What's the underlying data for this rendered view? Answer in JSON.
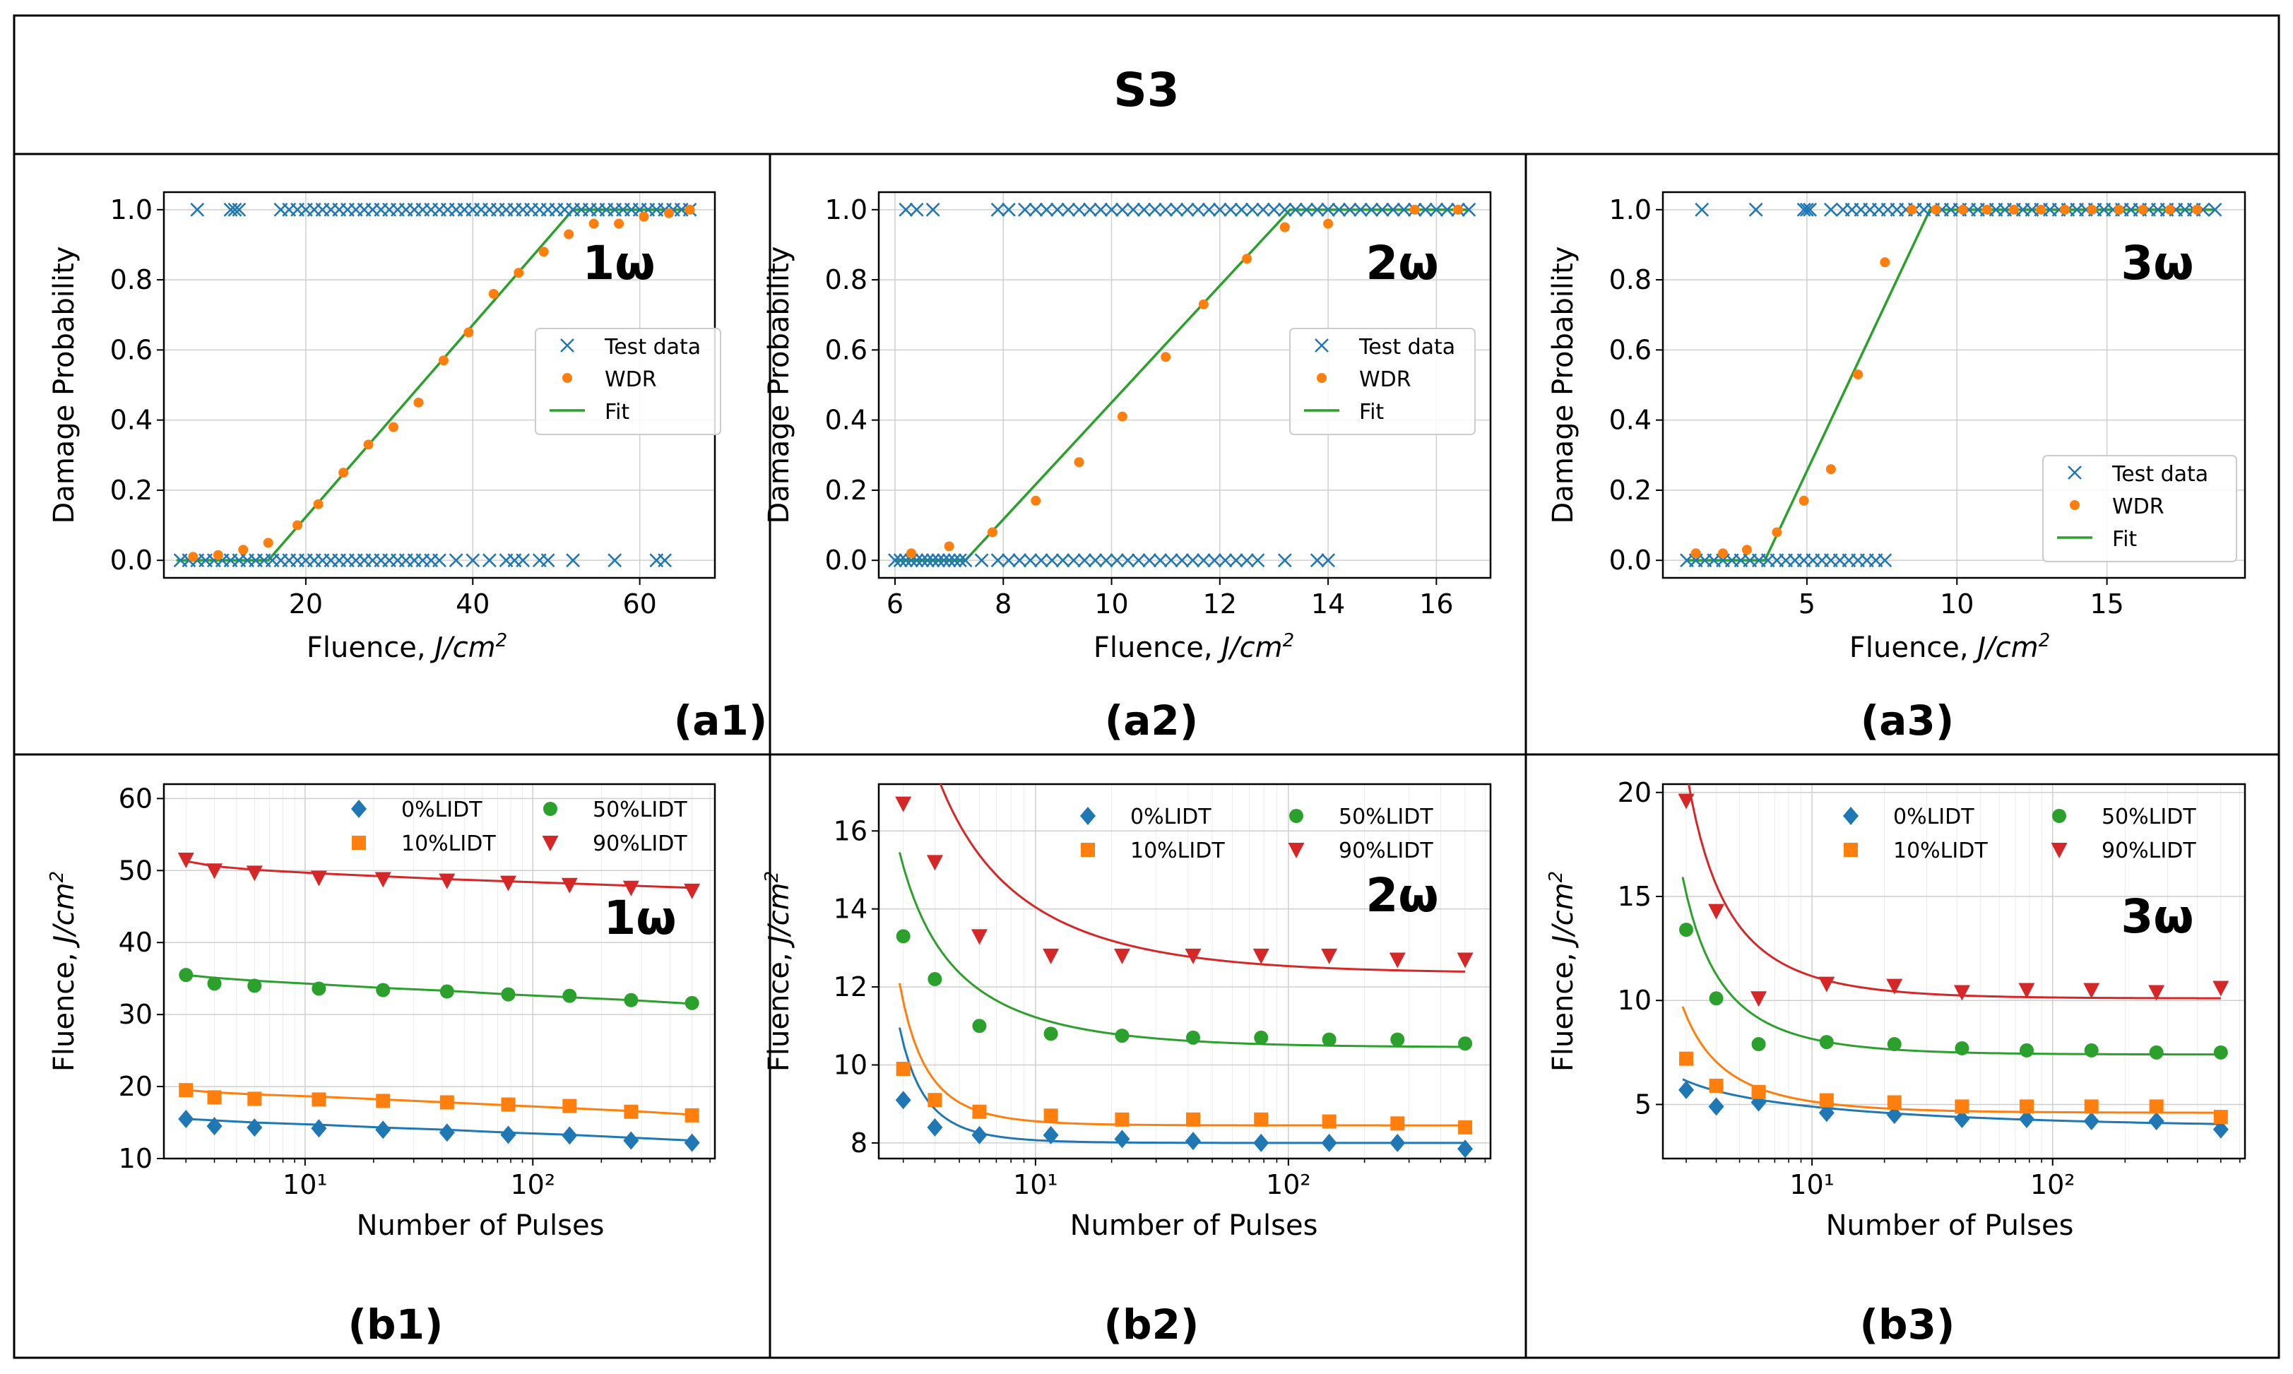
{
  "header": {
    "title": "S3"
  },
  "colors": {
    "blue": "#1f77b4",
    "orange": "#ff7f0e",
    "green": "#2ca02c",
    "red": "#d62728",
    "fitGreen": "#2ca02c"
  },
  "chart_data": [
    {
      "id": "a1",
      "panel_label": "(a1)",
      "type": "scatter",
      "title": "",
      "annotation": "1ω",
      "xlabel": "Fluence, J/cm²",
      "ylabel": "Damage Probability",
      "xlim": [
        3,
        69
      ],
      "ylim": [
        -0.05,
        1.05
      ],
      "xticks": [
        20,
        40,
        60
      ],
      "yticks": [
        0.0,
        0.2,
        0.4,
        0.6,
        0.8,
        1.0
      ],
      "grid": true,
      "legend_position": "center-right",
      "legend": [
        "Test data",
        "WDR",
        "Fit"
      ],
      "test_data_y1_x": [
        7,
        11,
        11.5,
        12,
        17,
        18,
        19,
        20,
        21,
        22,
        23,
        24,
        25,
        26,
        27,
        28,
        29,
        30,
        31,
        32,
        33,
        34,
        35,
        36,
        37,
        38,
        39,
        40,
        41,
        42,
        43,
        44,
        45,
        46,
        47,
        48,
        49,
        50,
        51,
        52,
        53,
        54,
        55,
        56,
        57,
        58,
        59,
        60,
        61,
        62,
        63,
        64,
        65,
        66
      ],
      "test_data_y0_x": [
        5,
        6,
        7,
        8,
        9,
        10,
        11,
        12,
        13,
        14,
        15,
        16,
        17,
        18,
        19,
        20,
        21,
        22,
        23,
        24,
        25,
        26,
        27,
        28,
        29,
        30,
        31,
        32,
        33,
        34,
        35,
        36,
        38,
        40,
        42,
        44,
        45,
        46,
        48,
        49,
        52,
        57,
        62,
        63
      ],
      "wdr_x": [
        6.5,
        9.5,
        12.5,
        15.5,
        19,
        21.5,
        24.5,
        27.5,
        30.5,
        33.5,
        36.5,
        39.5,
        42.5,
        45.5,
        48.5,
        51.5,
        54.5,
        57.5,
        60.5,
        63.5,
        66
      ],
      "wdr_y": [
        0.01,
        0.015,
        0.03,
        0.05,
        0.1,
        0.16,
        0.25,
        0.33,
        0.38,
        0.45,
        0.57,
        0.65,
        0.76,
        0.82,
        0.88,
        0.93,
        0.96,
        0.96,
        0.98,
        0.99,
        1.0
      ],
      "fit_x": [
        4.5,
        15.5,
        52,
        66.5
      ],
      "fit_y": [
        0,
        0,
        1,
        1
      ]
    },
    {
      "id": "a2",
      "panel_label": "(a2)",
      "type": "scatter",
      "title": "",
      "annotation": "2ω",
      "xlabel": "Fluence, J/cm²",
      "ylabel": "Damage Probability",
      "xlim": [
        5.7,
        17
      ],
      "ylim": [
        -0.05,
        1.05
      ],
      "xticks": [
        6,
        8,
        10,
        12,
        14,
        16
      ],
      "yticks": [
        0.0,
        0.2,
        0.4,
        0.6,
        0.8,
        1.0
      ],
      "grid": true,
      "legend_position": "center-right",
      "legend": [
        "Test data",
        "WDR",
        "Fit"
      ],
      "test_data_y1_x": [
        6.2,
        6.4,
        6.7,
        7.9,
        8.1,
        8.4,
        8.6,
        8.8,
        9.0,
        9.2,
        9.4,
        9.6,
        9.8,
        10.0,
        10.2,
        10.4,
        10.6,
        10.8,
        11.0,
        11.2,
        11.4,
        11.6,
        11.8,
        12.0,
        12.2,
        12.4,
        12.6,
        12.8,
        13.0,
        13.2,
        13.4,
        13.6,
        13.8,
        14.0,
        14.2,
        14.4,
        14.6,
        14.8,
        15.0,
        15.2,
        15.4,
        15.6,
        15.8,
        16.0,
        16.2,
        16.4,
        16.6
      ],
      "test_data_y0_x": [
        6.0,
        6.1,
        6.2,
        6.3,
        6.4,
        6.5,
        6.6,
        6.7,
        6.8,
        6.9,
        7.0,
        7.1,
        7.2,
        7.3,
        7.6,
        7.9,
        8.1,
        8.3,
        8.5,
        8.7,
        8.9,
        9.1,
        9.3,
        9.5,
        9.7,
        9.9,
        10.1,
        10.3,
        10.5,
        10.7,
        10.9,
        11.1,
        11.3,
        11.5,
        11.7,
        11.9,
        12.1,
        12.3,
        12.5,
        12.7,
        13.2,
        13.8,
        14.0
      ],
      "wdr_x": [
        6.3,
        7.0,
        7.8,
        8.6,
        9.4,
        10.2,
        11.0,
        11.7,
        12.5,
        13.2,
        14.0,
        15.6,
        16.4
      ],
      "wdr_y": [
        0.02,
        0.04,
        0.08,
        0.17,
        0.28,
        0.41,
        0.58,
        0.73,
        0.86,
        0.95,
        0.96,
        1.0,
        1.0
      ],
      "fit_x": [
        6.0,
        7.3,
        13.3,
        16.6
      ],
      "fit_y": [
        0,
        0,
        1,
        1
      ]
    },
    {
      "id": "a3",
      "panel_label": "(a3)",
      "type": "scatter",
      "title": "",
      "annotation": "3ω",
      "xlabel": "Fluence, J/cm²",
      "ylabel": "Damage Probability",
      "xlim": [
        0.2,
        19.6
      ],
      "ylim": [
        -0.05,
        1.05
      ],
      "xticks": [
        5,
        10,
        15
      ],
      "yticks": [
        0.0,
        0.2,
        0.4,
        0.6,
        0.8,
        1.0
      ],
      "grid": true,
      "legend_position": "lower-right",
      "legend": [
        "Test data",
        "WDR",
        "Fit"
      ],
      "test_data_y1_x": [
        1.5,
        3.3,
        4.9,
        5.0,
        5.1,
        5.8,
        6.2,
        6.5,
        6.8,
        7.1,
        7.4,
        7.7,
        8.0,
        8.3,
        8.6,
        8.9,
        9.2,
        9.5,
        9.8,
        10.1,
        10.4,
        10.7,
        11.0,
        11.3,
        11.6,
        11.9,
        12.2,
        12.5,
        12.8,
        13.1,
        13.4,
        13.7,
        14.0,
        14.3,
        14.6,
        14.9,
        15.2,
        15.5,
        15.8,
        16.1,
        16.4,
        16.7,
        17.0,
        17.3,
        17.6,
        17.9,
        18.2,
        18.6
      ],
      "test_data_y0_x": [
        1.0,
        1.3,
        1.6,
        1.9,
        2.2,
        2.5,
        2.8,
        3.1,
        3.4,
        3.7,
        4.0,
        4.3,
        4.6,
        4.9,
        5.2,
        5.5,
        5.8,
        6.1,
        6.4,
        6.7,
        7.0,
        7.3,
        7.6
      ],
      "wdr_x": [
        1.3,
        2.2,
        3.0,
        4.0,
        4.9,
        5.8,
        6.7,
        7.6,
        8.5,
        9.3,
        10.2,
        11.0,
        11.9,
        12.8,
        13.6,
        14.5,
        15.4,
        16.2,
        17.1,
        18.0
      ],
      "wdr_y": [
        0.02,
        0.02,
        0.03,
        0.08,
        0.17,
        0.26,
        0.53,
        0.85,
        1.0,
        1.0,
        1.0,
        1.0,
        1.0,
        1.0,
        1.0,
        1.0,
        1.0,
        1.0,
        1.0,
        1.0
      ],
      "fit_x": [
        1.0,
        3.6,
        9.1,
        18.6
      ],
      "fit_y": [
        0,
        0,
        1,
        1
      ]
    },
    {
      "id": "b1",
      "panel_label": "(b1)",
      "type": "scatter",
      "xscale": "log",
      "title": "",
      "annotation": "1ω",
      "xlabel": "Number of Pulses",
      "ylabel": "Fluence, J/cm²",
      "xlim": [
        2.4,
        630
      ],
      "ylim": [
        10,
        62
      ],
      "xticks": [
        10,
        100
      ],
      "xticklabels": [
        "10¹",
        "10²"
      ],
      "yticks": [
        10,
        20,
        30,
        40,
        50,
        60
      ],
      "grid": true,
      "legend_position": "upper-right",
      "x": [
        3,
        4,
        6,
        11.5,
        22,
        42,
        78,
        145,
        270,
        500
      ],
      "series": [
        {
          "name": "0%LIDT",
          "marker": "diamond",
          "color": "#1f77b4",
          "values": [
            15.5,
            14.5,
            14.3,
            14.2,
            14.0,
            13.6,
            13.3,
            13.2,
            12.5,
            12.2
          ],
          "fit": [
            15.5,
            15.3,
            15.0,
            14.7,
            14.3,
            14.0,
            13.6,
            13.3,
            12.9,
            12.5
          ]
        },
        {
          "name": "10%LIDT",
          "marker": "square",
          "color": "#ff7f0e",
          "values": [
            19.5,
            18.5,
            18.3,
            18.2,
            18.0,
            17.8,
            17.5,
            17.3,
            16.5,
            16.0
          ],
          "fit": [
            19.5,
            19.2,
            18.9,
            18.6,
            18.2,
            17.8,
            17.4,
            17.0,
            16.6,
            16.1
          ]
        },
        {
          "name": "50%LIDT",
          "marker": "circle",
          "color": "#2ca02c",
          "values": [
            35.5,
            34.3,
            34.0,
            33.6,
            33.4,
            33.2,
            32.8,
            32.6,
            32.0,
            31.6
          ],
          "fit": [
            35.5,
            35.1,
            34.7,
            34.2,
            33.7,
            33.3,
            32.8,
            32.4,
            32.0,
            31.5
          ]
        },
        {
          "name": "90%LIDT",
          "marker": "triangle-down",
          "color": "#d62728",
          "values": [
            51.5,
            50.0,
            49.7,
            49.0,
            48.8,
            48.6,
            48.3,
            48.0,
            47.6,
            47.2
          ],
          "fit": [
            51.3,
            50.6,
            50.1,
            49.6,
            49.2,
            48.8,
            48.5,
            48.2,
            47.9,
            47.6
          ]
        }
      ]
    },
    {
      "id": "b2",
      "panel_label": "(b2)",
      "type": "scatter",
      "xscale": "log",
      "title": "",
      "annotation": "2ω",
      "xlabel": "Number of Pulses",
      "ylabel": "Fluence, J/cm²",
      "xlim": [
        2.4,
        630
      ],
      "ylim": [
        7.6,
        17.2
      ],
      "xticks": [
        10,
        100
      ],
      "xticklabels": [
        "10¹",
        "10²"
      ],
      "yticks": [
        8,
        10,
        12,
        14,
        16
      ],
      "grid": true,
      "legend_position": "upper-right",
      "x": [
        3,
        4,
        6,
        11.5,
        22,
        42,
        78,
        145,
        270,
        500
      ],
      "series": [
        {
          "name": "0%LIDT",
          "marker": "diamond",
          "color": "#1f77b4",
          "values": [
            9.1,
            8.4,
            8.2,
            8.2,
            8.1,
            8.05,
            8.0,
            8.0,
            8.0,
            7.85
          ],
          "k": 5.0,
          "a": 8.0,
          "p": 2.0
        },
        {
          "name": "10%LIDT",
          "marker": "square",
          "color": "#ff7f0e",
          "values": [
            9.9,
            9.1,
            8.8,
            8.7,
            8.6,
            8.6,
            8.6,
            8.55,
            8.5,
            8.4
          ],
          "k": 6.0,
          "a": 8.45,
          "p": 1.9
        },
        {
          "name": "50%LIDT",
          "marker": "circle",
          "color": "#2ca02c",
          "values": [
            13.3,
            12.2,
            11.0,
            10.8,
            10.75,
            10.7,
            10.7,
            10.65,
            10.65,
            10.55
          ],
          "k": 6.5,
          "a": 10.45,
          "p": 1.0
        },
        {
          "name": "90%LIDT",
          "marker": "triangle-down",
          "color": "#d62728",
          "values": [
            16.7,
            15.2,
            13.3,
            12.8,
            12.8,
            12.8,
            12.8,
            12.8,
            12.7,
            12.7
          ],
          "k": 11.5,
          "a": 12.35,
          "p": 0.9
        }
      ]
    },
    {
      "id": "b3",
      "panel_label": "(b3)",
      "type": "scatter",
      "xscale": "log",
      "title": "",
      "annotation": "3ω",
      "xlabel": "Number of Pulses",
      "ylabel": "Fluence, J/cm²",
      "xlim": [
        2.4,
        630
      ],
      "ylim": [
        2.4,
        20.4
      ],
      "xticks": [
        10,
        100
      ],
      "xticklabels": [
        "10¹",
        "10²"
      ],
      "yticks": [
        5,
        10,
        15,
        20
      ],
      "grid": true,
      "legend_position": "upper-right",
      "x": [
        3,
        4,
        6,
        11.5,
        22,
        42,
        78,
        145,
        270,
        500
      ],
      "series": [
        {
          "name": "0%LIDT",
          "marker": "diamond",
          "color": "#1f77b4",
          "values": [
            5.7,
            4.9,
            5.1,
            4.6,
            4.5,
            4.3,
            4.3,
            4.2,
            4.2,
            3.8
          ],
          "k": 2.6,
          "a": 3.9,
          "p": 0.45
        },
        {
          "name": "10%LIDT",
          "marker": "square",
          "color": "#ff7f0e",
          "values": [
            7.2,
            5.9,
            5.6,
            5.2,
            5.1,
            4.9,
            4.9,
            4.9,
            4.9,
            4.4
          ],
          "k": 7.0,
          "a": 4.6,
          "p": 1.2
        },
        {
          "name": "50%LIDT",
          "marker": "circle",
          "color": "#2ca02c",
          "values": [
            13.4,
            10.1,
            7.9,
            8.0,
            7.9,
            7.7,
            7.6,
            7.6,
            7.5,
            7.5
          ],
          "k": 12.0,
          "a": 7.4,
          "p": 1.3
        },
        {
          "name": "90%LIDT",
          "marker": "triangle-down",
          "color": "#d62728",
          "values": [
            19.6,
            14.3,
            10.1,
            10.8,
            10.7,
            10.4,
            10.5,
            10.5,
            10.4,
            10.6
          ],
          "k": 17.0,
          "a": 10.1,
          "p": 1.3
        }
      ]
    }
  ]
}
